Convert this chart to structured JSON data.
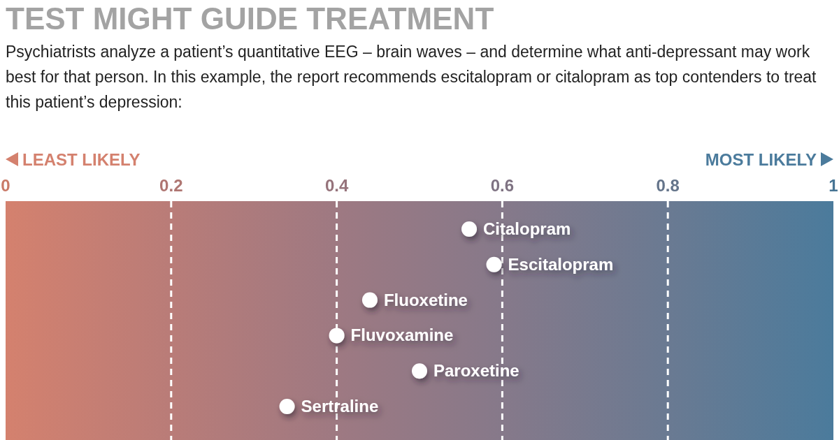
{
  "chart_data": {
    "type": "scatter",
    "title": "TEST MIGHT GUIDE TREATMENT",
    "subtitle": "Psychiatrists analyze a patient’s quantitative EEG – brain waves – and determine what anti-depressant may work best for that person. In this example, the report recommends escitalopram or citalopram as top contenders to treat this patient’s depression:",
    "categories": [
      "Citalopram",
      "Escitalopram",
      "Fluoxetine",
      "Fluvoxamine",
      "Paroxetine",
      "Sertraline"
    ],
    "orientation": "horizontal",
    "values": [
      0.56,
      0.59,
      0.44,
      0.4,
      0.5,
      0.34
    ],
    "color": "#ffffff",
    "marker": "circle",
    "xlim": [
      0,
      1
    ],
    "xticks": [
      0,
      0.2,
      0.4,
      0.6,
      0.8,
      1
    ],
    "grid": "x",
    "annotations": [
      "LEAST LIKELY",
      "MOST LIKELY"
    ]
  }
}
